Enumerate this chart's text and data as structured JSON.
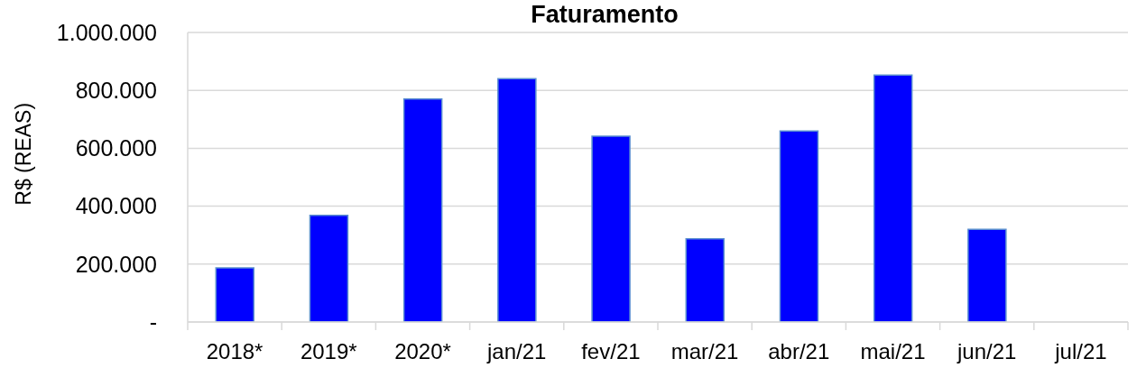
{
  "chart_data": {
    "type": "bar",
    "title": "Faturamento",
    "ylabel": "R$ (REAS)",
    "categories": [
      "2018*",
      "2019*",
      "2020*",
      "jan/21",
      "fev/21",
      "mar/21",
      "abr/21",
      "mai/21",
      "jun/21",
      "jul/21"
    ],
    "values": [
      187000,
      368000,
      770000,
      840000,
      642000,
      287000,
      660000,
      853000,
      320000,
      null
    ],
    "color": "#0000ff",
    "ylim": [
      0,
      1000000
    ],
    "yticks": [
      {
        "value": 0,
        "label": "-"
      },
      {
        "value": 200000,
        "label": "200.000"
      },
      {
        "value": 400000,
        "label": "400.000"
      },
      {
        "value": 600000,
        "label": "600.000"
      },
      {
        "value": 800000,
        "label": "800.000"
      },
      {
        "value": 1000000,
        "label": "1.000.000"
      }
    ],
    "grid": "y"
  }
}
